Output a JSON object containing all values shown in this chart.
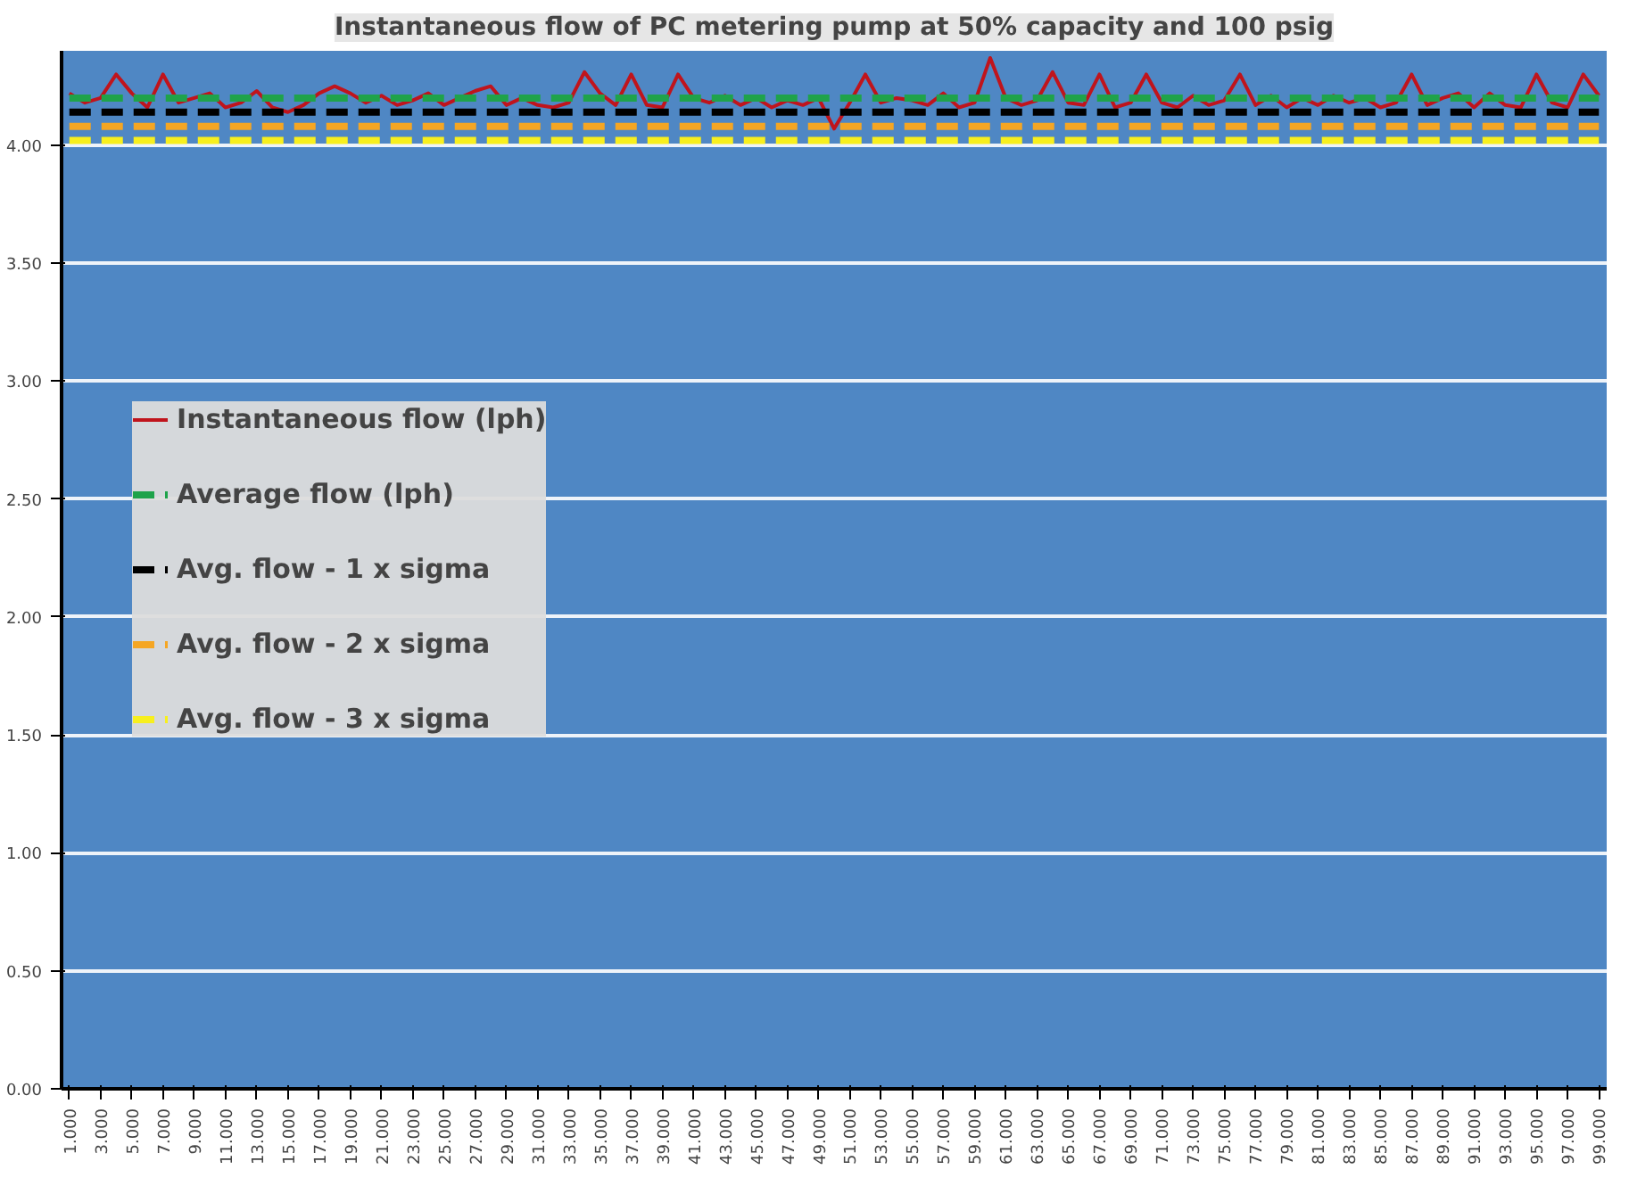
{
  "chart_data": {
    "type": "line",
    "title": "Instantaneous flow of PC metering pump at 50% capacity and 100 psig",
    "x": [
      1,
      2,
      3,
      4,
      5,
      6,
      7,
      8,
      9,
      10,
      11,
      12,
      13,
      14,
      15,
      16,
      17,
      18,
      19,
      20,
      21,
      22,
      23,
      24,
      25,
      26,
      27,
      28,
      29,
      30,
      31,
      32,
      33,
      34,
      35,
      36,
      37,
      38,
      39,
      40,
      41,
      42,
      43,
      44,
      45,
      46,
      47,
      48,
      49,
      50,
      51,
      52,
      53,
      54,
      55,
      56,
      57,
      58,
      59,
      60,
      61,
      62,
      63,
      64,
      65,
      66,
      67,
      68,
      69,
      70,
      71,
      72,
      73,
      74,
      75,
      76,
      77,
      78,
      79,
      80,
      81,
      82,
      83,
      84,
      85,
      86,
      87,
      88,
      89,
      90,
      91,
      92,
      93,
      94,
      95,
      96,
      97,
      98,
      99
    ],
    "series": [
      {
        "name": "Instantaneous flow (lph)",
        "color": "#c0141c",
        "values": [
          4.22,
          4.18,
          4.2,
          4.3,
          4.22,
          4.16,
          4.3,
          4.18,
          4.2,
          4.22,
          4.16,
          4.18,
          4.23,
          4.16,
          4.14,
          4.17,
          4.22,
          4.25,
          4.22,
          4.18,
          4.21,
          4.17,
          4.19,
          4.22,
          4.17,
          4.2,
          4.23,
          4.25,
          4.17,
          4.2,
          4.17,
          4.16,
          4.18,
          4.31,
          4.22,
          4.17,
          4.3,
          4.17,
          4.16,
          4.3,
          4.2,
          4.18,
          4.21,
          4.17,
          4.2,
          4.16,
          4.19,
          4.17,
          4.2,
          4.07,
          4.18,
          4.3,
          4.18,
          4.2,
          4.19,
          4.17,
          4.22,
          4.16,
          4.18,
          4.37,
          4.2,
          4.17,
          4.19,
          4.31,
          4.18,
          4.17,
          4.3,
          4.16,
          4.18,
          4.3,
          4.18,
          4.16,
          4.21,
          4.17,
          4.19,
          4.3,
          4.17,
          4.21,
          4.16,
          4.2,
          4.17,
          4.21,
          4.18,
          4.2,
          4.16,
          4.18,
          4.3,
          4.17,
          4.2,
          4.22,
          4.16,
          4.22,
          4.17,
          4.16,
          4.3,
          4.18,
          4.16,
          4.3,
          4.21
        ]
      },
      {
        "name": "Average flow (lph)",
        "color": "#1fa34a",
        "line_style": "dashed",
        "values": [
          4.2,
          4.2,
          4.2,
          4.2,
          4.2,
          4.2,
          4.2,
          4.2,
          4.2,
          4.2,
          4.2,
          4.2,
          4.2,
          4.2,
          4.2,
          4.2,
          4.2,
          4.2,
          4.2,
          4.2,
          4.2,
          4.2,
          4.2,
          4.2,
          4.2,
          4.2,
          4.2,
          4.2,
          4.2,
          4.2,
          4.2,
          4.2,
          4.2,
          4.2,
          4.2,
          4.2,
          4.2,
          4.2,
          4.2,
          4.2,
          4.2,
          4.2,
          4.2,
          4.2,
          4.2,
          4.2,
          4.2,
          4.2,
          4.2,
          4.2,
          4.2,
          4.2,
          4.2,
          4.2,
          4.2,
          4.2,
          4.2,
          4.2,
          4.2,
          4.2,
          4.2,
          4.2,
          4.2,
          4.2,
          4.2,
          4.2,
          4.2,
          4.2,
          4.2,
          4.2,
          4.2,
          4.2,
          4.2,
          4.2,
          4.2,
          4.2,
          4.2,
          4.2,
          4.2,
          4.2,
          4.2,
          4.2,
          4.2,
          4.2,
          4.2,
          4.2,
          4.2,
          4.2,
          4.2,
          4.2,
          4.2,
          4.2,
          4.2,
          4.2,
          4.2,
          4.2,
          4.2,
          4.2,
          4.2
        ]
      },
      {
        "name": "Avg. flow - 1 x sigma",
        "color": "#000000",
        "line_style": "dashed",
        "values": [
          4.14,
          4.14,
          4.14,
          4.14,
          4.14,
          4.14,
          4.14,
          4.14,
          4.14,
          4.14,
          4.14,
          4.14,
          4.14,
          4.14,
          4.14,
          4.14,
          4.14,
          4.14,
          4.14,
          4.14,
          4.14,
          4.14,
          4.14,
          4.14,
          4.14,
          4.14,
          4.14,
          4.14,
          4.14,
          4.14,
          4.14,
          4.14,
          4.14,
          4.14,
          4.14,
          4.14,
          4.14,
          4.14,
          4.14,
          4.14,
          4.14,
          4.14,
          4.14,
          4.14,
          4.14,
          4.14,
          4.14,
          4.14,
          4.14,
          4.14,
          4.14,
          4.14,
          4.14,
          4.14,
          4.14,
          4.14,
          4.14,
          4.14,
          4.14,
          4.14,
          4.14,
          4.14,
          4.14,
          4.14,
          4.14,
          4.14,
          4.14,
          4.14,
          4.14,
          4.14,
          4.14,
          4.14,
          4.14,
          4.14,
          4.14,
          4.14,
          4.14,
          4.14,
          4.14,
          4.14,
          4.14,
          4.14,
          4.14,
          4.14,
          4.14,
          4.14,
          4.14,
          4.14,
          4.14,
          4.14,
          4.14,
          4.14,
          4.14,
          4.14,
          4.14,
          4.14,
          4.14,
          4.14,
          4.14
        ]
      },
      {
        "name": "Avg. flow - 2 x sigma",
        "color": "#f5a623",
        "line_style": "dashed",
        "values": [
          4.08,
          4.08,
          4.08,
          4.08,
          4.08,
          4.08,
          4.08,
          4.08,
          4.08,
          4.08,
          4.08,
          4.08,
          4.08,
          4.08,
          4.08,
          4.08,
          4.08,
          4.08,
          4.08,
          4.08,
          4.08,
          4.08,
          4.08,
          4.08,
          4.08,
          4.08,
          4.08,
          4.08,
          4.08,
          4.08,
          4.08,
          4.08,
          4.08,
          4.08,
          4.08,
          4.08,
          4.08,
          4.08,
          4.08,
          4.08,
          4.08,
          4.08,
          4.08,
          4.08,
          4.08,
          4.08,
          4.08,
          4.08,
          4.08,
          4.08,
          4.08,
          4.08,
          4.08,
          4.08,
          4.08,
          4.08,
          4.08,
          4.08,
          4.08,
          4.08,
          4.08,
          4.08,
          4.08,
          4.08,
          4.08,
          4.08,
          4.08,
          4.08,
          4.08,
          4.08,
          4.08,
          4.08,
          4.08,
          4.08,
          4.08,
          4.08,
          4.08,
          4.08,
          4.08,
          4.08,
          4.08,
          4.08,
          4.08,
          4.08,
          4.08,
          4.08,
          4.08,
          4.08,
          4.08,
          4.08,
          4.08,
          4.08,
          4.08,
          4.08,
          4.08,
          4.08,
          4.08,
          4.08,
          4.08
        ]
      },
      {
        "name": "Avg. flow - 3 x sigma",
        "color": "#f7ef1e",
        "line_style": "dashed",
        "values": [
          4.02,
          4.02,
          4.02,
          4.02,
          4.02,
          4.02,
          4.02,
          4.02,
          4.02,
          4.02,
          4.02,
          4.02,
          4.02,
          4.02,
          4.02,
          4.02,
          4.02,
          4.02,
          4.02,
          4.02,
          4.02,
          4.02,
          4.02,
          4.02,
          4.02,
          4.02,
          4.02,
          4.02,
          4.02,
          4.02,
          4.02,
          4.02,
          4.02,
          4.02,
          4.02,
          4.02,
          4.02,
          4.02,
          4.02,
          4.02,
          4.02,
          4.02,
          4.02,
          4.02,
          4.02,
          4.02,
          4.02,
          4.02,
          4.02,
          4.02,
          4.02,
          4.02,
          4.02,
          4.02,
          4.02,
          4.02,
          4.02,
          4.02,
          4.02,
          4.02,
          4.02,
          4.02,
          4.02,
          4.02,
          4.02,
          4.02,
          4.02,
          4.02,
          4.02,
          4.02,
          4.02,
          4.02,
          4.02,
          4.02,
          4.02,
          4.02,
          4.02,
          4.02,
          4.02,
          4.02,
          4.02,
          4.02,
          4.02,
          4.02,
          4.02,
          4.02,
          4.02,
          4.02,
          4.02,
          4.02,
          4.02,
          4.02,
          4.02,
          4.02,
          4.02,
          4.02,
          4.02,
          4.02,
          4.02
        ]
      }
    ],
    "xlim": [
      0.5,
      99.5
    ],
    "xticks": [
      {
        "value": 1,
        "label": "1.000"
      },
      {
        "value": 3,
        "label": "3.000"
      },
      {
        "value": 5,
        "label": "5.000"
      },
      {
        "value": 7,
        "label": "7.000"
      },
      {
        "value": 9,
        "label": "9.000"
      },
      {
        "value": 11,
        "label": "11.000"
      },
      {
        "value": 13,
        "label": "13.000"
      },
      {
        "value": 15,
        "label": "15.000"
      },
      {
        "value": 17,
        "label": "17.000"
      },
      {
        "value": 19,
        "label": "19.000"
      },
      {
        "value": 21,
        "label": "21.000"
      },
      {
        "value": 23,
        "label": "23.000"
      },
      {
        "value": 25,
        "label": "25.000"
      },
      {
        "value": 27,
        "label": "27.000"
      },
      {
        "value": 29,
        "label": "29.000"
      },
      {
        "value": 31,
        "label": "31.000"
      },
      {
        "value": 33,
        "label": "33.000"
      },
      {
        "value": 35,
        "label": "35.000"
      },
      {
        "value": 37,
        "label": "37.000"
      },
      {
        "value": 39,
        "label": "39.000"
      },
      {
        "value": 41,
        "label": "41.000"
      },
      {
        "value": 43,
        "label": "43.000"
      },
      {
        "value": 45,
        "label": "45.000"
      },
      {
        "value": 47,
        "label": "47.000"
      },
      {
        "value": 49,
        "label": "49.000"
      },
      {
        "value": 51,
        "label": "51.000"
      },
      {
        "value": 53,
        "label": "53.000"
      },
      {
        "value": 55,
        "label": "55.000"
      },
      {
        "value": 57,
        "label": "57.000"
      },
      {
        "value": 59,
        "label": "59.000"
      },
      {
        "value": 61,
        "label": "61.000"
      },
      {
        "value": 63,
        "label": "63.000"
      },
      {
        "value": 65,
        "label": "65.000"
      },
      {
        "value": 67,
        "label": "67.000"
      },
      {
        "value": 69,
        "label": "69.000"
      },
      {
        "value": 71,
        "label": "71.000"
      },
      {
        "value": 73,
        "label": "73.000"
      },
      {
        "value": 75,
        "label": "75.000"
      },
      {
        "value": 77,
        "label": "77.000"
      },
      {
        "value": 79,
        "label": "79.000"
      },
      {
        "value": 81,
        "label": "81.000"
      },
      {
        "value": 83,
        "label": "83.000"
      },
      {
        "value": 85,
        "label": "85.000"
      },
      {
        "value": 87,
        "label": "87.000"
      },
      {
        "value": 89,
        "label": "89.000"
      },
      {
        "value": 91,
        "label": "91.000"
      },
      {
        "value": 93,
        "label": "93.000"
      },
      {
        "value": 95,
        "label": "95.000"
      },
      {
        "value": 97,
        "label": "97.000"
      },
      {
        "value": 99,
        "label": "99.000"
      }
    ],
    "ylim": [
      0,
      4.4
    ],
    "yticks": [
      {
        "value": 0,
        "label": "0.00"
      },
      {
        "value": 0.5,
        "label": "0.50"
      },
      {
        "value": 1,
        "label": "1.00"
      },
      {
        "value": 1.5,
        "label": "1.50"
      },
      {
        "value": 2,
        "label": "2.00"
      },
      {
        "value": 2.5,
        "label": "2.50"
      },
      {
        "value": 3,
        "label": "3.00"
      },
      {
        "value": 3.5,
        "label": "3.50"
      },
      {
        "value": 4,
        "label": "4.00"
      }
    ],
    "grid": "y",
    "legend": "left",
    "line_style": "solid"
  }
}
